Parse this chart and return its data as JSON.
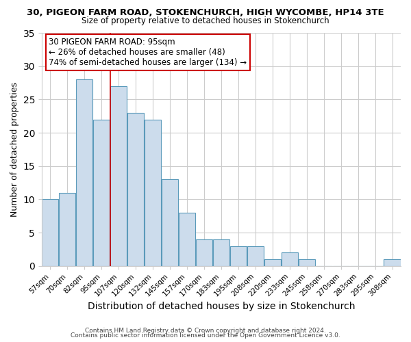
{
  "title1": "30, PIGEON FARM ROAD, STOKENCHURCH, HIGH WYCOMBE, HP14 3TE",
  "title2": "Size of property relative to detached houses in Stokenchurch",
  "xlabel": "Distribution of detached houses by size in Stokenchurch",
  "ylabel": "Number of detached properties",
  "bar_labels": [
    "57sqm",
    "70sqm",
    "82sqm",
    "95sqm",
    "107sqm",
    "120sqm",
    "132sqm",
    "145sqm",
    "157sqm",
    "170sqm",
    "183sqm",
    "195sqm",
    "208sqm",
    "220sqm",
    "233sqm",
    "245sqm",
    "258sqm",
    "270sqm",
    "283sqm",
    "295sqm",
    "308sqm"
  ],
  "bar_values": [
    10,
    11,
    28,
    22,
    27,
    23,
    22,
    13,
    8,
    4,
    4,
    3,
    3,
    1,
    2,
    1,
    0,
    0,
    0,
    0,
    1
  ],
  "bar_color": "#ccdcec",
  "bar_edge_color": "#5a9aba",
  "vline_color": "#cc0000",
  "ylim": [
    0,
    35
  ],
  "yticks": [
    0,
    5,
    10,
    15,
    20,
    25,
    30,
    35
  ],
  "annotation_title": "30 PIGEON FARM ROAD: 95sqm",
  "annotation_line1": "← 26% of detached houses are smaller (48)",
  "annotation_line2": "74% of semi-detached houses are larger (134) →",
  "annotation_box_color": "#ffffff",
  "annotation_box_edge": "#cc0000",
  "footer1": "Contains HM Land Registry data © Crown copyright and database right 2024.",
  "footer2": "Contains public sector information licensed under the Open Government Licence v3.0.",
  "background_color": "#ffffff",
  "grid_color": "#cccccc"
}
